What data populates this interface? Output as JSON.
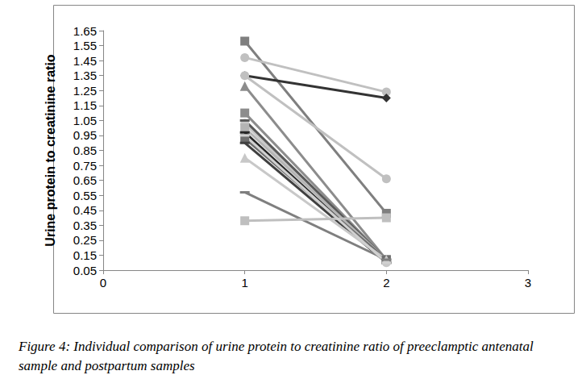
{
  "chart_data": {
    "type": "line",
    "title": "Figure 4: Individual comparison of urine protein to creatinine ratio of preeclamptic antenatal sample and postpartum samples",
    "y_label": "Urine protein to creatinine ratio",
    "x": [
      1,
      2
    ],
    "xlim": [
      0,
      3
    ],
    "xticks": [
      0,
      1,
      2,
      3
    ],
    "ylim": [
      0.05,
      1.65
    ],
    "yticks": [
      0.05,
      0.15,
      0.25,
      0.35,
      0.45,
      0.55,
      0.65,
      0.75,
      0.85,
      0.95,
      1.05,
      1.15,
      1.25,
      1.35,
      1.45,
      1.55,
      1.65
    ],
    "grid": false,
    "series": [
      {
        "color": "#7f7f7f",
        "marker": "square",
        "values": [
          1.58,
          0.43
        ]
      },
      {
        "color": "#c0c0c0",
        "marker": "circle",
        "values": [
          1.47,
          1.24
        ]
      },
      {
        "color": "#333333",
        "marker": "diamond",
        "values": [
          1.35,
          1.2
        ]
      },
      {
        "color": "#c0c0c0",
        "marker": "circle",
        "values": [
          1.35,
          0.66
        ]
      },
      {
        "color": "#8c8c8c",
        "marker": "triangle",
        "values": [
          1.28,
          0.12
        ]
      },
      {
        "color": "#8c8c8c",
        "marker": "square",
        "values": [
          1.1,
          0.12
        ]
      },
      {
        "color": "#c8c8c8",
        "marker": "circle",
        "values": [
          1.03,
          0.1
        ]
      },
      {
        "color": "#595959",
        "marker": "dash",
        "values": [
          1.05,
          0.12
        ]
      },
      {
        "color": "#b4b4b4",
        "marker": "square",
        "values": [
          1.0,
          0.12
        ]
      },
      {
        "color": "#262626",
        "marker": "dash",
        "values": [
          0.97,
          0.1
        ]
      },
      {
        "color": "#6e6e6e",
        "marker": "square",
        "values": [
          0.93,
          0.12
        ]
      },
      {
        "color": "#404040",
        "marker": "dash",
        "values": [
          0.9,
          0.1
        ]
      },
      {
        "color": "#c8c8c8",
        "marker": "triangle",
        "values": [
          0.8,
          0.12
        ]
      },
      {
        "color": "#7f7f7f",
        "marker": "dash",
        "values": [
          0.57,
          0.12
        ]
      },
      {
        "color": "#bfbfbf",
        "marker": "square",
        "values": [
          0.38,
          0.4
        ]
      },
      {
        "color": "#d0d0d0",
        "marker": "dash",
        "values": [
          0.95,
          0.1
        ]
      }
    ]
  }
}
